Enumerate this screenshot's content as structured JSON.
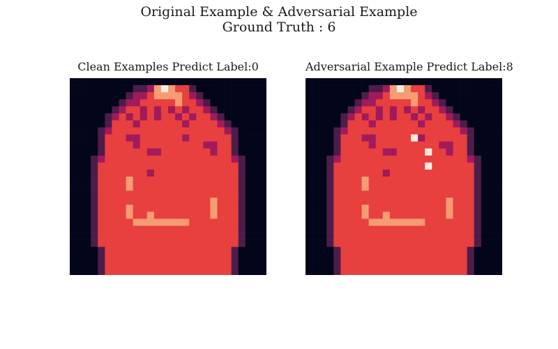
{
  "figure": {
    "suptitle_line1": "Original Example & Adversarial Example",
    "suptitle_line2": "Ground Truth : 6"
  },
  "chart_data": [
    {
      "type": "heatmap",
      "title": "Clean Examples Predict Label:0",
      "grid_size": [
        28,
        28
      ],
      "colormap": "rocket",
      "colors": [
        "#03051a",
        "#4c1d4b",
        "#a11a5b",
        "#e83f3f",
        "#f69c73",
        "#faebdd"
      ],
      "description_values": "0-5 intensity levels mapped to colormap",
      "cells": [
        "0000000000000000000000000000",
        "0000000001124543310000000000",
        "0000000012234444321000000000",
        "0000000122333334332100000000",
        "0000001233232323233210000000",
        "0000012323232332323321000000",
        "0000013332333333233332100000",
        "0000123333333333333333210000",
        "0000133322333333233333310000",
        "0000133332333333333223310000",
        "0000133333322333333323310000",
        "0001233333333333333333321000",
        "0001333333333333333333331000",
        "0001333333323333333333331000",
        "0001333343333333333333331000",
        "0001333343333333333333331000",
        "0001333333333333333333331000",
        "0001333333333333333343331000",
        "0001333343333333333343331000",
        "0001333343343333333343331000",
        "0001333334444444433333331000",
        "0001333333333333333333331000",
        "0001333333333333333333331000",
        "0001333333333333333333331000",
        "0000133333333333333333310000",
        "0000133333333333333333310000",
        "0000133333333333333333310000",
        "0000133333333333333333310000"
      ]
    },
    {
      "type": "heatmap",
      "title": "Adversarial Example Predict Label:8",
      "grid_size": [
        28,
        28
      ],
      "colormap": "rocket",
      "colors": [
        "#03051a",
        "#4c1d4b",
        "#a11a5b",
        "#e83f3f",
        "#f69c73",
        "#faebdd"
      ],
      "cells": [
        "0000000000000000000000000000",
        "0000000001124543310000000000",
        "0000000012234444321000000000",
        "0000000122333334332100000000",
        "0000001233232323233210000000",
        "0000012323232332323321000000",
        "0000013332333333233332100000",
        "0000123333333333333333210000",
        "0000133322333335233333310000",
        "0000133332333333333223310000",
        "0000133333322333353323310000",
        "0001233333333333333333321000",
        "0001333333333333353333331000",
        "0001333333323333333333331000",
        "0001333343333333333333331000",
        "0001333343333333333333331000",
        "0001333333333333333333331000",
        "0001333333333333333343331000",
        "0001333343333333333343331000",
        "0001333343343333333343331000",
        "0001333334444444433333331000",
        "0001333333333333333333331000",
        "0001333333333333333333331000",
        "0001333333333333333333331000",
        "0000133333333333333333310000",
        "0000133333333333333333310000",
        "0000133333333333333333310000",
        "0000133333333333333333310000"
      ]
    }
  ]
}
